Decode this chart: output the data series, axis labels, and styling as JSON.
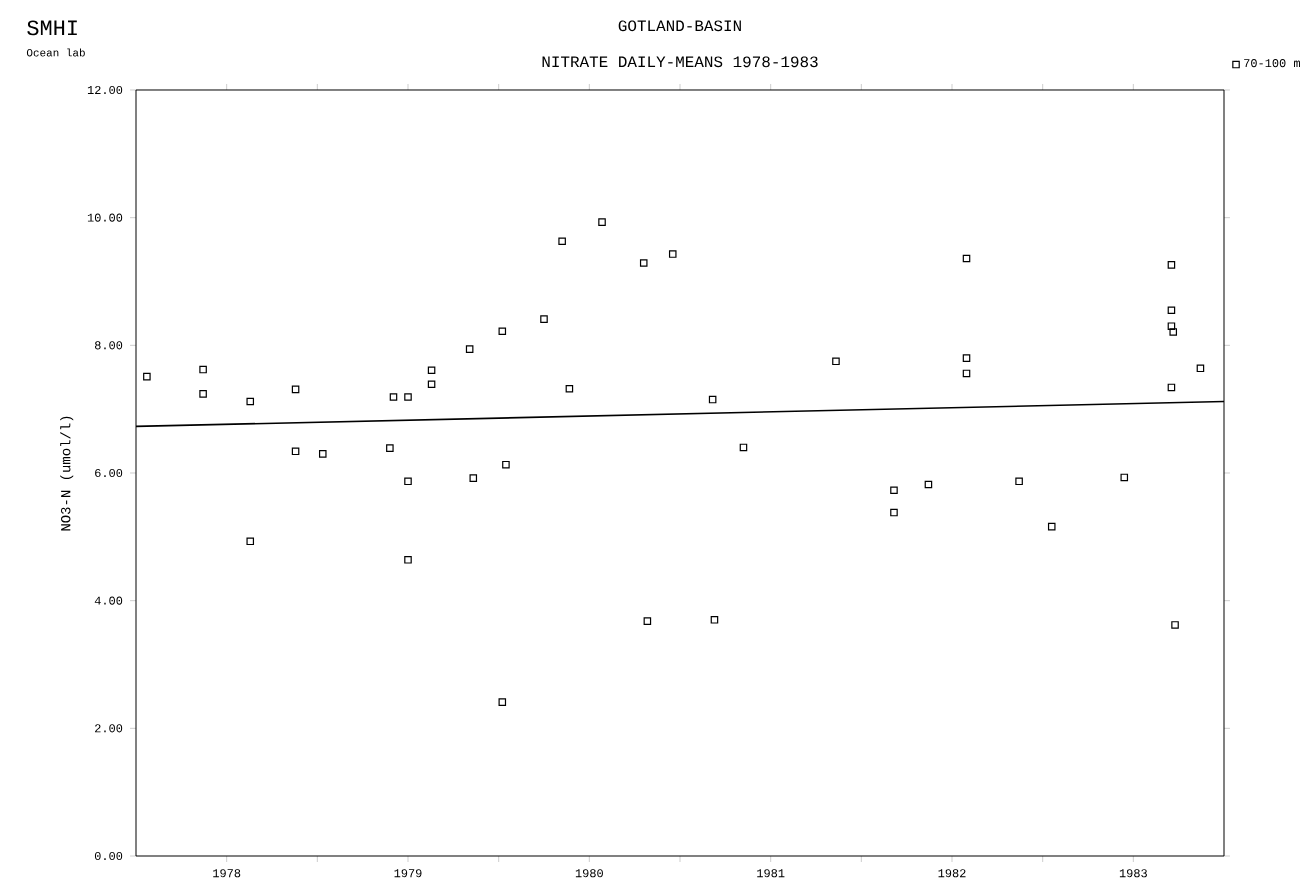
{
  "chart_data": {
    "type": "scatter",
    "title": "GOTLAND-BASIN",
    "subtitle": "NITRATE  DAILY-MEANS  1978-1983",
    "ylabel": "NO3-N (umol/l)",
    "annotations": [
      "SMHI",
      "Ocean lab"
    ],
    "xlim": [
      1978,
      1984
    ],
    "xticks": [
      {
        "value": 1978.5,
        "label": "1978"
      },
      {
        "value": 1979,
        "label": null
      },
      {
        "value": 1979.5,
        "label": "1979"
      },
      {
        "value": 1980,
        "label": null
      },
      {
        "value": 1980.5,
        "label": "1980"
      },
      {
        "value": 1981,
        "label": null
      },
      {
        "value": 1981.5,
        "label": "1981"
      },
      {
        "value": 1982,
        "label": null
      },
      {
        "value": 1982.5,
        "label": "1982"
      },
      {
        "value": 1983,
        "label": null
      },
      {
        "value": 1983.5,
        "label": "1983"
      }
    ],
    "ylim": [
      0,
      12
    ],
    "yticks": [
      {
        "value": 0,
        "label": "0.00"
      },
      {
        "value": 2,
        "label": "2.00"
      },
      {
        "value": 4,
        "label": "4.00"
      },
      {
        "value": 6,
        "label": "6.00"
      },
      {
        "value": 8,
        "label": "8.00"
      },
      {
        "value": 10,
        "label": "10.00"
      },
      {
        "value": 12,
        "label": "12.00"
      }
    ],
    "legend": "top right",
    "marker": "square",
    "grid": false,
    "series": [
      {
        "name": "70-100 m",
        "color": "#000000",
        "x": [
          1978.06,
          1978.37,
          1978.37,
          1978.63,
          1978.88,
          1978.88,
          1979.03,
          1979.4,
          1979.42,
          1979.5,
          1979.5,
          1979.63,
          1979.63,
          1979.84,
          1979.86,
          1980.02,
          1980.04,
          1980.25,
          1980.35,
          1980.39,
          1980.57,
          1980.8,
          1980.96,
          1981.18,
          1981.35,
          1981.86,
          1982.18,
          1982.18,
          1982.37,
          1982.58,
          1982.58,
          1982.58,
          1982.87,
          1983.05,
          1983.45,
          1983.71,
          1983.71,
          1983.71,
          1983.72,
          1983.71,
          1983.87,
          1978.63,
          1979.5,
          1980.02,
          1980.82,
          1981.19,
          1983.73
        ],
        "values": [
          7.51,
          7.62,
          7.24,
          7.12,
          7.31,
          6.34,
          6.3,
          6.39,
          7.19,
          7.19,
          5.87,
          7.61,
          7.39,
          7.94,
          5.92,
          8.22,
          6.13,
          8.41,
          9.63,
          7.32,
          9.93,
          9.29,
          9.43,
          7.15,
          6.4,
          7.75,
          5.73,
          5.38,
          5.82,
          9.36,
          7.8,
          7.56,
          5.87,
          5.16,
          5.93,
          9.26,
          8.55,
          8.3,
          8.21,
          7.34,
          7.64,
          4.93,
          4.64,
          2.41,
          3.68,
          3.7,
          3.62
        ]
      },
      {
        "type": "line",
        "marker": "none",
        "color": "#000000",
        "x": [
          1978,
          1984
        ],
        "values": [
          6.73,
          7.12
        ]
      }
    ]
  }
}
